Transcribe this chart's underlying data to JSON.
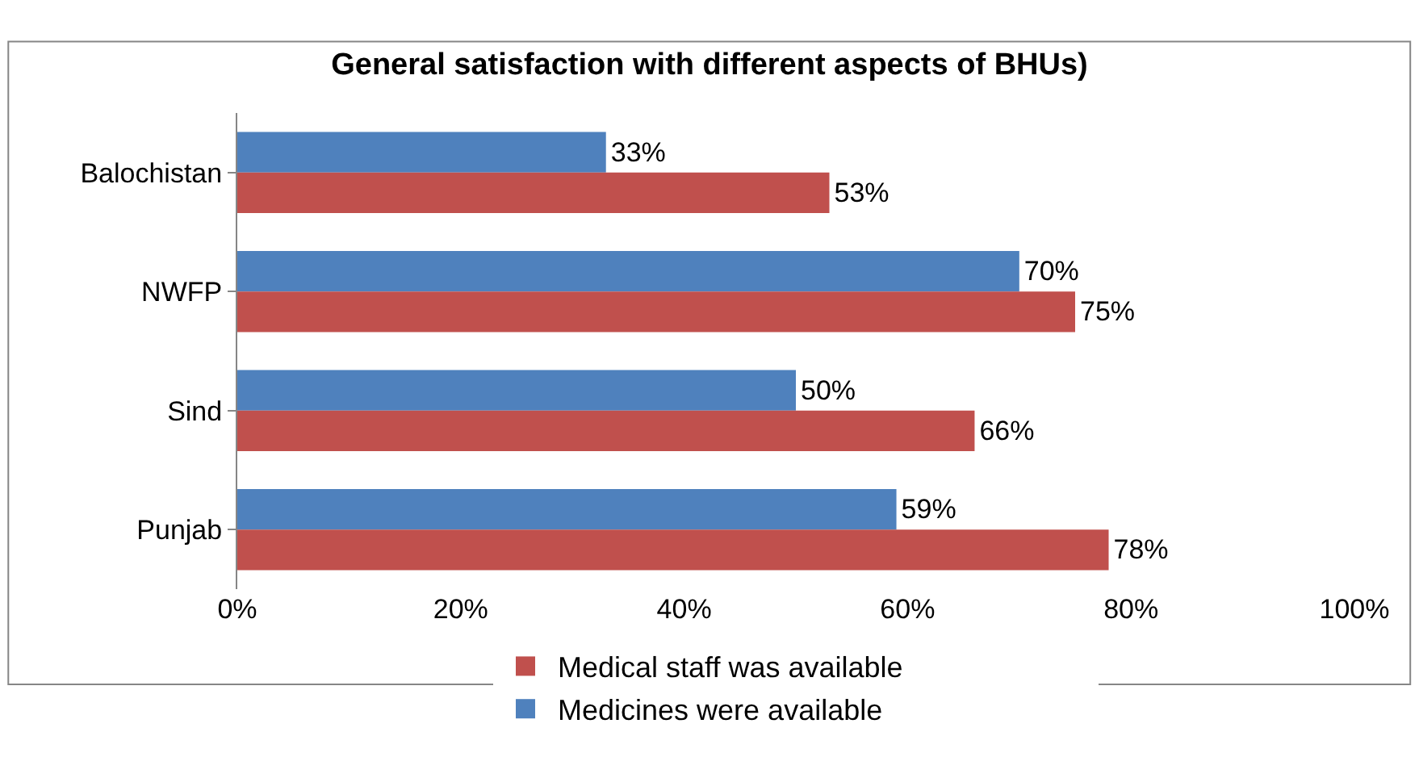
{
  "chart_data": {
    "type": "bar",
    "orientation": "horizontal",
    "title": "General satisfaction with different aspects of BHUs)",
    "categories": [
      "Balochistan",
      "NWFP",
      "Sind",
      "Punjab"
    ],
    "series": [
      {
        "name": "Medical staff was available",
        "color": "#c0504d",
        "values": [
          53,
          75,
          66,
          78
        ],
        "value_labels": [
          "53%",
          "75%",
          "66%",
          "78%"
        ]
      },
      {
        "name": "Medicines were available",
        "color": "#4f81bd",
        "values": [
          33,
          70,
          50,
          59
        ],
        "value_labels": [
          "33%",
          "70%",
          "50%",
          "59%"
        ]
      }
    ],
    "xlim": [
      0,
      100
    ],
    "xticks": [
      {
        "value": 0,
        "label": "0%"
      },
      {
        "value": 20,
        "label": "20%"
      },
      {
        "value": 40,
        "label": "40%"
      },
      {
        "value": 60,
        "label": "60%"
      },
      {
        "value": 80,
        "label": "80%"
      },
      {
        "value": 100,
        "label": "100%"
      }
    ],
    "legend": "bottom"
  }
}
